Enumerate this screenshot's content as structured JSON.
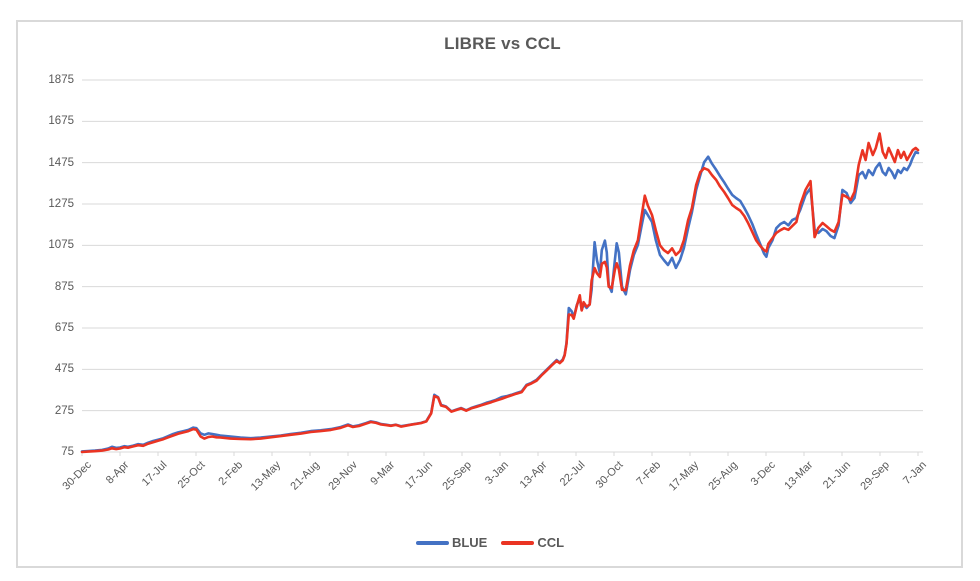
{
  "chart": {
    "frame_border_color": "#D9D9D9",
    "background": "#FFFFFF"
  },
  "chart_data": {
    "type": "line",
    "title": "LIBRE vs CCL",
    "title_color": "#595959",
    "grid": "horizontal",
    "gridline_color": "#D9D9D9",
    "axis_text_color": "#595959",
    "y_ticks": [
      75,
      275,
      475,
      675,
      875,
      1075,
      1275,
      1475,
      1675,
      1875
    ],
    "ylim": [
      75,
      1875
    ],
    "x_tick_labels": [
      "30-Dec",
      "8-Apr",
      "17-Jul",
      "25-Oct",
      "2-Feb",
      "13-May",
      "21-Aug",
      "29-Nov",
      "9-Mar",
      "17-Jun",
      "25-Sep",
      "3-Jan",
      "13-Apr",
      "22-Jul",
      "30-Oct",
      "7-Feb",
      "17-May",
      "25-Aug",
      "3-Dec",
      "13-Mar",
      "21-Jun",
      "29-Sep",
      "7-Jan"
    ],
    "x_range": [
      0,
      22
    ],
    "legend_position": "bottom",
    "series": [
      {
        "name": "BLUE",
        "color": "#4472C4"
      },
      {
        "name": "CCL",
        "color": "#EA3423"
      }
    ],
    "columns": [
      "x_tick_units",
      "BLUE",
      "CCL"
    ],
    "points": [
      [
        0.0,
        78,
        75
      ],
      [
        0.16,
        80,
        77
      ],
      [
        0.34,
        82,
        79
      ],
      [
        0.53,
        85,
        82
      ],
      [
        0.69,
        92,
        87
      ],
      [
        0.79,
        100,
        93
      ],
      [
        0.9,
        95,
        89
      ],
      [
        1.0,
        97,
        92
      ],
      [
        1.11,
        103,
        98
      ],
      [
        1.21,
        100,
        96
      ],
      [
        1.35,
        106,
        102
      ],
      [
        1.48,
        113,
        108
      ],
      [
        1.61,
        110,
        105
      ],
      [
        1.74,
        120,
        115
      ],
      [
        1.87,
        128,
        122
      ],
      [
        2.01,
        135,
        130
      ],
      [
        2.14,
        142,
        137
      ],
      [
        2.27,
        152,
        146
      ],
      [
        2.4,
        162,
        155
      ],
      [
        2.53,
        170,
        163
      ],
      [
        2.67,
        176,
        170
      ],
      [
        2.8,
        182,
        176
      ],
      [
        2.93,
        193,
        186
      ],
      [
        3.01,
        190,
        183
      ],
      [
        3.12,
        165,
        150
      ],
      [
        3.22,
        158,
        140
      ],
      [
        3.33,
        165,
        148
      ],
      [
        3.43,
        162,
        150
      ],
      [
        3.54,
        158,
        146
      ],
      [
        3.64,
        155,
        145
      ],
      [
        3.91,
        150,
        140
      ],
      [
        4.17,
        145,
        138
      ],
      [
        4.44,
        142,
        137
      ],
      [
        4.7,
        145,
        140
      ],
      [
        4.96,
        150,
        146
      ],
      [
        5.23,
        155,
        152
      ],
      [
        5.49,
        162,
        158
      ],
      [
        5.76,
        168,
        164
      ],
      [
        6.02,
        176,
        172
      ],
      [
        6.28,
        180,
        176
      ],
      [
        6.55,
        186,
        182
      ],
      [
        6.81,
        196,
        192
      ],
      [
        7.0,
        208,
        204
      ],
      [
        7.13,
        199,
        196
      ],
      [
        7.29,
        204,
        201
      ],
      [
        7.47,
        215,
        212
      ],
      [
        7.6,
        223,
        220
      ],
      [
        7.74,
        218,
        216
      ],
      [
        7.87,
        210,
        208
      ],
      [
        8.0,
        207,
        205
      ],
      [
        8.13,
        203,
        202
      ],
      [
        8.26,
        207,
        206
      ],
      [
        8.4,
        200,
        198
      ],
      [
        8.66,
        208,
        207
      ],
      [
        8.92,
        216,
        215
      ],
      [
        9.06,
        224,
        223
      ],
      [
        9.19,
        264,
        262
      ],
      [
        9.27,
        352,
        345
      ],
      [
        9.37,
        340,
        338
      ],
      [
        9.45,
        303,
        300
      ],
      [
        9.58,
        295,
        293
      ],
      [
        9.72,
        272,
        270
      ],
      [
        9.85,
        280,
        278
      ],
      [
        9.98,
        288,
        286
      ],
      [
        10.11,
        277,
        275
      ],
      [
        10.24,
        288,
        286
      ],
      [
        10.38,
        296,
        293
      ],
      [
        10.51,
        304,
        301
      ],
      [
        10.64,
        313,
        308
      ],
      [
        10.77,
        320,
        316
      ],
      [
        10.9,
        328,
        324
      ],
      [
        11.04,
        340,
        332
      ],
      [
        11.17,
        345,
        341
      ],
      [
        11.3,
        352,
        349
      ],
      [
        11.43,
        360,
        357
      ],
      [
        11.57,
        368,
        365
      ],
      [
        11.7,
        400,
        397
      ],
      [
        11.83,
        410,
        407
      ],
      [
        11.96,
        424,
        420
      ],
      [
        12.09,
        448,
        445
      ],
      [
        12.23,
        473,
        470
      ],
      [
        12.36,
        497,
        494
      ],
      [
        12.49,
        520,
        516
      ],
      [
        12.57,
        508,
        505
      ],
      [
        12.65,
        522,
        518
      ],
      [
        12.7,
        545,
        542
      ],
      [
        12.75,
        603,
        598
      ],
      [
        12.81,
        772,
        740
      ],
      [
        12.89,
        755,
        738
      ],
      [
        12.94,
        723,
        720
      ],
      [
        13.02,
        786,
        782
      ],
      [
        13.1,
        820,
        833
      ],
      [
        13.15,
        762,
        760
      ],
      [
        13.2,
        790,
        800
      ],
      [
        13.28,
        772,
        778
      ],
      [
        13.36,
        790,
        788
      ],
      [
        13.41,
        860,
        905
      ],
      [
        13.49,
        1090,
        965
      ],
      [
        13.55,
        1005,
        940
      ],
      [
        13.63,
        940,
        922
      ],
      [
        13.68,
        1052,
        985
      ],
      [
        13.76,
        1098,
        995
      ],
      [
        13.81,
        1040,
        968
      ],
      [
        13.86,
        883,
        875
      ],
      [
        13.94,
        850,
        868
      ],
      [
        14.02,
        1000,
        955
      ],
      [
        14.07,
        1085,
        988
      ],
      [
        14.13,
        1040,
        958
      ],
      [
        14.21,
        875,
        860
      ],
      [
        14.31,
        838,
        858
      ],
      [
        14.42,
        955,
        978
      ],
      [
        14.52,
        1028,
        1050
      ],
      [
        14.63,
        1077,
        1100
      ],
      [
        14.73,
        1172,
        1220
      ],
      [
        14.81,
        1246,
        1315
      ],
      [
        14.89,
        1222,
        1268
      ],
      [
        15.0,
        1188,
        1222
      ],
      [
        15.1,
        1100,
        1148
      ],
      [
        15.21,
        1028,
        1075
      ],
      [
        15.31,
        1004,
        1052
      ],
      [
        15.42,
        980,
        1038
      ],
      [
        15.53,
        1014,
        1060
      ],
      [
        15.63,
        966,
        1028
      ],
      [
        15.74,
        1005,
        1048
      ],
      [
        15.84,
        1062,
        1100
      ],
      [
        15.95,
        1158,
        1197
      ],
      [
        16.05,
        1235,
        1255
      ],
      [
        16.16,
        1342,
        1366
      ],
      [
        16.27,
        1415,
        1429
      ],
      [
        16.37,
        1477,
        1448
      ],
      [
        16.48,
        1504,
        1440
      ],
      [
        16.58,
        1470,
        1415
      ],
      [
        16.69,
        1440,
        1391
      ],
      [
        16.79,
        1410,
        1360
      ],
      [
        16.9,
        1380,
        1333
      ],
      [
        17.0,
        1350,
        1304
      ],
      [
        17.11,
        1319,
        1270
      ],
      [
        17.21,
        1304,
        1256
      ],
      [
        17.32,
        1290,
        1243
      ],
      [
        17.43,
        1256,
        1217
      ],
      [
        17.53,
        1222,
        1183
      ],
      [
        17.64,
        1178,
        1140
      ],
      [
        17.74,
        1130,
        1100
      ],
      [
        17.85,
        1080,
        1072
      ],
      [
        17.95,
        1035,
        1052
      ],
      [
        18.01,
        1020,
        1045
      ],
      [
        18.06,
        1062,
        1082
      ],
      [
        18.17,
        1100,
        1110
      ],
      [
        18.27,
        1158,
        1135
      ],
      [
        18.38,
        1178,
        1148
      ],
      [
        18.48,
        1188,
        1158
      ],
      [
        18.59,
        1172,
        1150
      ],
      [
        18.69,
        1197,
        1168
      ],
      [
        18.8,
        1207,
        1188
      ],
      [
        18.9,
        1246,
        1270
      ],
      [
        19.04,
        1318,
        1343
      ],
      [
        19.17,
        1352,
        1386
      ],
      [
        19.28,
        1150,
        1115
      ],
      [
        19.38,
        1135,
        1160
      ],
      [
        19.49,
        1154,
        1183
      ],
      [
        19.59,
        1144,
        1168
      ],
      [
        19.7,
        1120,
        1150
      ],
      [
        19.8,
        1110,
        1140
      ],
      [
        19.91,
        1172,
        1188
      ],
      [
        20.01,
        1343,
        1320
      ],
      [
        20.12,
        1328,
        1310
      ],
      [
        20.23,
        1280,
        1295
      ],
      [
        20.33,
        1304,
        1333
      ],
      [
        20.44,
        1415,
        1464
      ],
      [
        20.54,
        1430,
        1535
      ],
      [
        20.62,
        1400,
        1488
      ],
      [
        20.7,
        1439,
        1570
      ],
      [
        20.81,
        1415,
        1512
      ],
      [
        20.89,
        1449,
        1546
      ],
      [
        20.99,
        1473,
        1616
      ],
      [
        21.07,
        1430,
        1527
      ],
      [
        21.15,
        1415,
        1498
      ],
      [
        21.23,
        1449,
        1546
      ],
      [
        21.31,
        1430,
        1512
      ],
      [
        21.39,
        1400,
        1478
      ],
      [
        21.47,
        1439,
        1536
      ],
      [
        21.55,
        1425,
        1498
      ],
      [
        21.63,
        1449,
        1527
      ],
      [
        21.71,
        1439,
        1488
      ],
      [
        21.79,
        1464,
        1512
      ],
      [
        21.86,
        1498,
        1536
      ],
      [
        21.94,
        1527,
        1546
      ],
      [
        22.0,
        1522,
        1536
      ]
    ]
  }
}
